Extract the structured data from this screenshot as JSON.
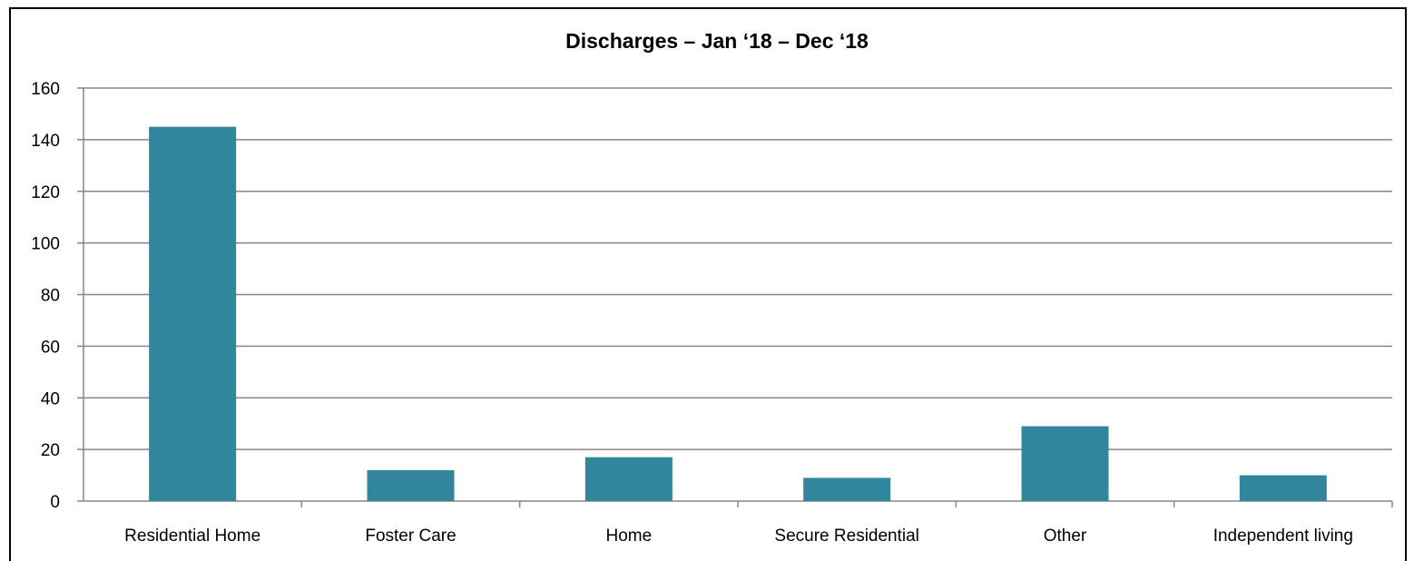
{
  "chart_data": {
    "type": "bar",
    "title": "Discharges – Jan ‘18 – Dec ‘18",
    "xlabel": "",
    "ylabel": "",
    "categories": [
      "Residential Home",
      "Foster Care",
      "Home",
      "Secure Residential",
      "Other",
      "Independent living"
    ],
    "values": [
      145,
      12,
      17,
      9,
      29,
      10
    ],
    "ylim": [
      0,
      160
    ],
    "yticks": [
      0,
      20,
      40,
      60,
      80,
      100,
      120,
      140,
      160
    ],
    "grid": true,
    "legend": "none",
    "bar_color": "#31859c",
    "grid_color": "#868686"
  }
}
